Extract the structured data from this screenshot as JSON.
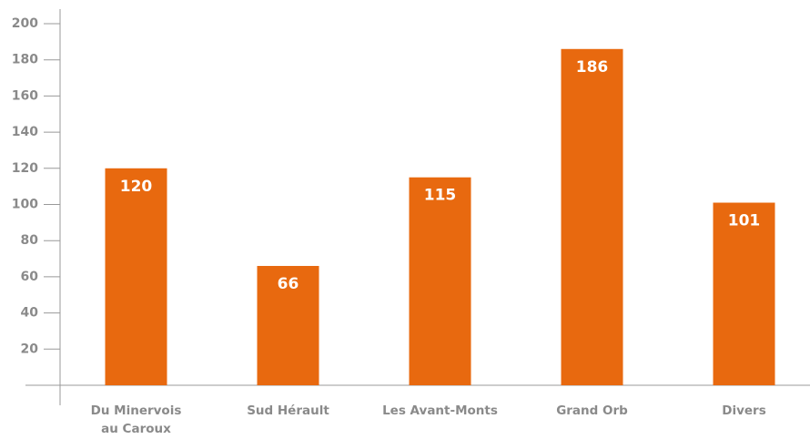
{
  "chart_data": {
    "type": "bar",
    "categories": [
      "Du Minervois\nau Caroux",
      "Sud Hérault",
      "Les Avant-Monts",
      "Grand Orb",
      "Divers"
    ],
    "values": [
      120,
      66,
      115,
      186,
      101
    ],
    "color": "#e8690f",
    "ylim": [
      0,
      200
    ],
    "yticks": [
      20,
      40,
      60,
      80,
      100,
      120,
      140,
      160,
      180,
      200
    ]
  }
}
